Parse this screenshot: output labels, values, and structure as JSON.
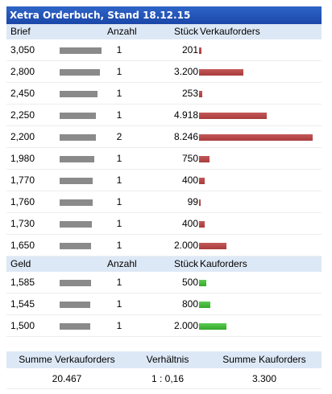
{
  "title": "Xetra Orderbuch, Stand 18.12.15",
  "sell_header": {
    "price": "Brief",
    "anzahl": "Anzahl",
    "stueck": "Stück",
    "orders": "Verkauforders"
  },
  "sell_rows": [
    {
      "price": "3,050",
      "anzahl": "1",
      "stueck": "201",
      "qty": 201
    },
    {
      "price": "2,800",
      "anzahl": "1",
      "stueck": "3.200",
      "qty": 3200
    },
    {
      "price": "2,450",
      "anzahl": "1",
      "stueck": "253",
      "qty": 253
    },
    {
      "price": "2,250",
      "anzahl": "1",
      "stueck": "4.918",
      "qty": 4918
    },
    {
      "price": "2,200",
      "anzahl": "2",
      "stueck": "8.246",
      "qty": 8246
    },
    {
      "price": "1,980",
      "anzahl": "1",
      "stueck": "750",
      "qty": 750
    },
    {
      "price": "1,770",
      "anzahl": "1",
      "stueck": "400",
      "qty": 400
    },
    {
      "price": "1,760",
      "anzahl": "1",
      "stueck": "99",
      "qty": 99
    },
    {
      "price": "1,730",
      "anzahl": "1",
      "stueck": "400",
      "qty": 400
    },
    {
      "price": "1,650",
      "anzahl": "1",
      "stueck": "2.000",
      "qty": 2000
    }
  ],
  "buy_header": {
    "price": "Geld",
    "anzahl": "Anzahl",
    "stueck": "Stück",
    "orders": "Kauforders"
  },
  "buy_rows": [
    {
      "price": "1,585",
      "anzahl": "1",
      "stueck": "500",
      "qty": 500
    },
    {
      "price": "1,545",
      "anzahl": "1",
      "stueck": "800",
      "qty": 800
    },
    {
      "price": "1,500",
      "anzahl": "1",
      "stueck": "2.000",
      "qty": 2000
    }
  ],
  "summary": {
    "headers": {
      "sell_total": "Summe Verkauforders",
      "ratio": "Verhältnis",
      "buy_total": "Summe Kauforders"
    },
    "values": {
      "sell_total": "20.467",
      "ratio": "1 : 0,16",
      "buy_total": "3.300"
    }
  },
  "colors": {
    "title_bg": "#1f4fb0",
    "header_bg": "#dde8f6",
    "sell_bar": "#b04545",
    "buy_bar": "#3cb534",
    "price_bar": "#8a8a8a"
  }
}
